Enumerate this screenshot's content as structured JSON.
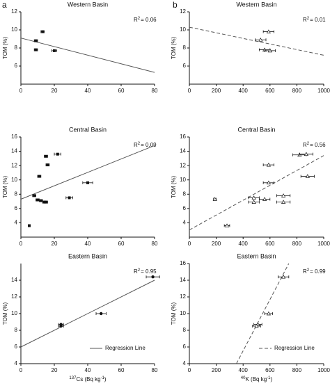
{
  "panel_labels": [
    "a",
    "b"
  ],
  "chart_data": [
    {
      "type": "scatter",
      "title": "Western Basin",
      "ylabel": "TOM (%)",
      "annotation": [
        "R",
        "2",
        "= 0.06"
      ],
      "xlim": [
        0,
        80
      ],
      "xticks": [
        0,
        20,
        40,
        60,
        80
      ],
      "ylim": [
        4,
        12
      ],
      "yticks": [
        6,
        8,
        10,
        12
      ],
      "marker": "square",
      "color": "#111111",
      "x": [
        13,
        9,
        9,
        20
      ],
      "values": [
        9.8,
        8.8,
        7.8,
        7.7
      ],
      "xerr": [
        1,
        1,
        1,
        1.5
      ],
      "regression": {
        "x": [
          0,
          80
        ],
        "y": [
          9.1,
          5.3
        ],
        "style": "solid"
      }
    },
    {
      "type": "scatter",
      "title": "Western Basin",
      "ylabel": "TOM (%)",
      "annotation": [
        "R",
        "2",
        "= 0.01"
      ],
      "xlim": [
        0,
        1000
      ],
      "xticks": [
        0,
        200,
        400,
        600,
        800,
        1000
      ],
      "ylim": [
        4,
        12
      ],
      "yticks": [
        6,
        8,
        10,
        12
      ],
      "marker": "triangle",
      "color": "#111111",
      "x": [
        590,
        530,
        560,
        600
      ],
      "values": [
        9.8,
        8.9,
        7.8,
        7.7
      ],
      "xerr": [
        40,
        40,
        40,
        40
      ],
      "regression": {
        "x": [
          0,
          1000
        ],
        "y": [
          10.3,
          7.2
        ],
        "style": "dashed"
      }
    },
    {
      "type": "scatter",
      "title": "Central Basin",
      "ylabel": "TOM (%)",
      "annotation": [
        "R",
        "2",
        "= 0.09"
      ],
      "xlim": [
        0,
        80
      ],
      "xticks": [
        0,
        20,
        40,
        60,
        80
      ],
      "ylim": [
        2,
        16
      ],
      "yticks": [
        4,
        6,
        8,
        10,
        12,
        14,
        16
      ],
      "marker": "square",
      "color": "#111111",
      "x": [
        22,
        15,
        16,
        11,
        40,
        29,
        8,
        10,
        12,
        14,
        15,
        5
      ],
      "values": [
        13.6,
        13.3,
        12.1,
        10.5,
        9.6,
        7.5,
        7.8,
        7.2,
        7.1,
        6.9,
        6.9,
        3.6
      ],
      "xerr": [
        2,
        1,
        1,
        1,
        3,
        2,
        1,
        1,
        1,
        1,
        1,
        0.5
      ],
      "regression": {
        "x": [
          0,
          80
        ],
        "y": [
          7.3,
          14.8
        ],
        "style": "solid"
      }
    },
    {
      "type": "scatter",
      "title": "Central Basin",
      "ylabel": "TOM (%)",
      "annotation": [
        "R",
        "2",
        "= 0.56"
      ],
      "xlim": [
        0,
        1000
      ],
      "xticks": [
        0,
        200,
        400,
        600,
        800,
        1000
      ],
      "ylim": [
        2,
        16
      ],
      "yticks": [
        4,
        6,
        8,
        10,
        12,
        14,
        16
      ],
      "marker": "triangle",
      "color": "#111111",
      "x": [
        820,
        870,
        590,
        590,
        880,
        700,
        190,
        480,
        560,
        480,
        700,
        280
      ],
      "values": [
        13.5,
        13.6,
        12.1,
        9.6,
        10.5,
        7.8,
        7.3,
        7.5,
        7.3,
        6.9,
        6.9,
        3.6
      ],
      "xerr": [
        50,
        50,
        40,
        40,
        50,
        50,
        10,
        40,
        40,
        40,
        50,
        20
      ],
      "regression": {
        "x": [
          0,
          1000
        ],
        "y": [
          3,
          13.4
        ],
        "style": "dashed"
      }
    },
    {
      "type": "scatter",
      "title": "Eastern Basin",
      "ylabel": "TOM (%)",
      "annotation": [
        "R",
        "2",
        "= 0.95"
      ],
      "xlabel": [
        "137",
        "Cs (Bq kg",
        "-1",
        ")"
      ],
      "legend": "Regression Line",
      "xlim": [
        0,
        80
      ],
      "xticks": [
        0,
        20,
        40,
        60,
        80
      ],
      "ylim": [
        4,
        16
      ],
      "yticks": [
        4,
        6,
        8,
        10,
        12,
        14
      ],
      "marker": "circle",
      "color": "#111111",
      "x": [
        24,
        24,
        48,
        79
      ],
      "values": [
        8.7,
        8.5,
        10,
        14.4
      ],
      "xerr": [
        1.5,
        1.5,
        3,
        4
      ],
      "regression": {
        "x": [
          0,
          80
        ],
        "y": [
          6,
          14
        ],
        "style": "solid"
      }
    },
    {
      "type": "scatter",
      "title": "Eastern Basin",
      "ylabel": "TOM (%)",
      "annotation": [
        "R",
        "2",
        "= 0.99"
      ],
      "xlabel": [
        "40",
        "K (Bq kg",
        "-1",
        ")"
      ],
      "legend": "Regression Line",
      "xlim": [
        0,
        1000
      ],
      "xticks": [
        0,
        200,
        400,
        600,
        800,
        1000
      ],
      "ylim": [
        4,
        16
      ],
      "yticks": [
        4,
        6,
        8,
        10,
        12,
        14,
        16
      ],
      "marker": "triangle",
      "color": "#111111",
      "x": [
        700,
        590,
        510,
        500
      ],
      "values": [
        14.4,
        10,
        8.7,
        8.5
      ],
      "xerr": [
        40,
        30,
        30,
        30
      ],
      "regression": {
        "x": [
          350,
          740
        ],
        "y": [
          4,
          16
        ],
        "style": "dashed"
      }
    }
  ]
}
